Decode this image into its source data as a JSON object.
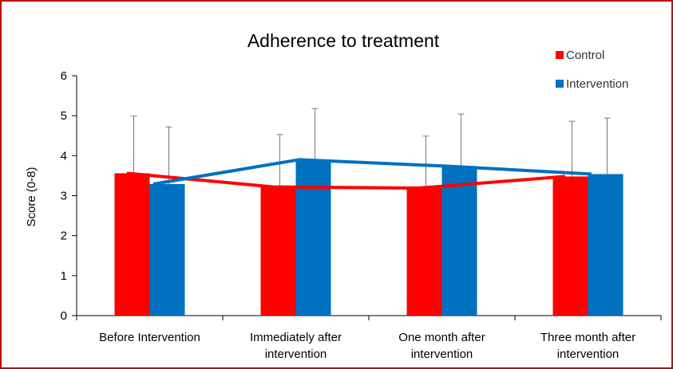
{
  "chart_data": {
    "type": "bar",
    "title": "Adherence to treatment",
    "xlabel": "",
    "ylabel": "Score (0-8)",
    "ylim": [
      0,
      6
    ],
    "yticks": [
      0,
      1,
      2,
      3,
      4,
      5,
      6
    ],
    "categories": [
      [
        "Before Intervention"
      ],
      [
        "Immediately after",
        "intervention"
      ],
      [
        "One month after",
        "intervention"
      ],
      [
        "Three month after",
        "intervention"
      ]
    ],
    "series": [
      {
        "name": "Control",
        "color": "#ff0000",
        "values": [
          3.56,
          3.22,
          3.19,
          3.48
        ],
        "error": [
          1.43,
          1.31,
          1.3,
          1.38
        ]
      },
      {
        "name": "Intervention",
        "color": "#0070c0",
        "values": [
          3.29,
          3.9,
          3.74,
          3.54
        ],
        "error": [
          1.43,
          1.28,
          1.3,
          1.4
        ]
      }
    ],
    "lines_connect_means": true,
    "grid": false,
    "legend": "top-right"
  }
}
